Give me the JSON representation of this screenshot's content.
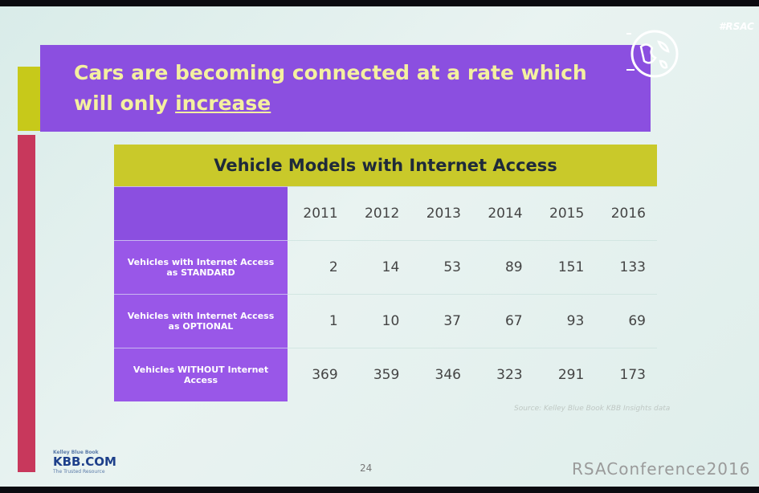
{
  "header": {
    "title": "Cars are becoming connected at a rate which will only",
    "title_emphasis": "increase",
    "hashtag": "#RSAC"
  },
  "table": {
    "title": "Vehicle Models with Internet Access",
    "columns": [
      "2011",
      "2012",
      "2013",
      "2014",
      "2015",
      "2016"
    ],
    "rows": [
      {
        "label": "Vehicles with Internet Access as STANDARD",
        "values": [
          2,
          14,
          53,
          89,
          151,
          133
        ]
      },
      {
        "label": "Vehicles with Internet Access as OPTIONAL",
        "values": [
          1,
          10,
          37,
          67,
          93,
          69
        ]
      },
      {
        "label": "Vehicles WITHOUT Internet Access",
        "values": [
          369,
          359,
          346,
          323,
          291,
          173
        ]
      }
    ],
    "source": "Source: Kelley Blue Book KBB Insights data"
  },
  "footer": {
    "logo_top": "Kelley Blue Book",
    "logo": "KBB.COM",
    "logo_tagline": "The Trusted Resource",
    "page_number": "24",
    "conference": "RSAConference2016"
  }
}
